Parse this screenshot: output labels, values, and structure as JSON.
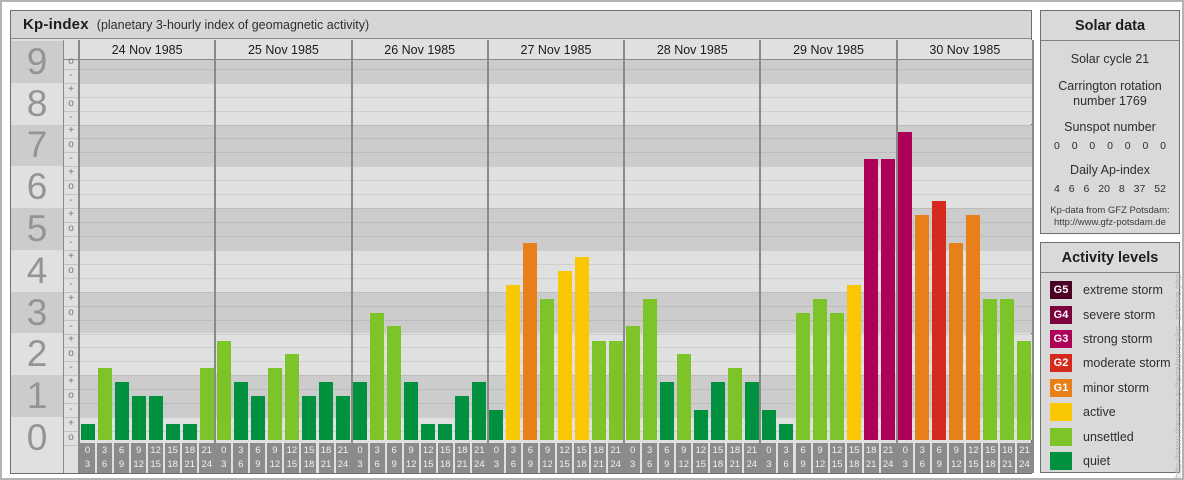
{
  "title": {
    "main": "Kp-index",
    "subtitle": "(planetary 3-hourly index of geomagnetic activity)"
  },
  "chart_data": {
    "type": "bar",
    "title": "Kp-index",
    "subtitle": "(planetary 3-hourly index of geomagnetic activity)",
    "y_axis": {
      "unit_labels": [
        9,
        8,
        7,
        6,
        5,
        4,
        3,
        2,
        1,
        0
      ],
      "sub_level_glyphs_top_to_bottom": [
        "+",
        "o",
        "-"
      ],
      "range": [
        0,
        9
      ]
    },
    "x_axis": {
      "interval_labels": [
        [
          "0",
          "3"
        ],
        [
          "3",
          "6"
        ],
        [
          "6",
          "9"
        ],
        [
          "9",
          "12"
        ],
        [
          "12",
          "15"
        ],
        [
          "15",
          "18"
        ],
        [
          "18",
          "21"
        ],
        [
          "21",
          "24"
        ]
      ]
    },
    "days": [
      {
        "date": "24 Nov 1985",
        "kp": [
          "0+",
          "2-",
          "1+",
          "1o",
          "1o",
          "0+",
          "0+",
          "2-"
        ],
        "values": [
          0.33,
          1.67,
          1.33,
          1.0,
          1.0,
          0.33,
          0.33,
          1.67
        ]
      },
      {
        "date": "25 Nov 1985",
        "kp": [
          "2+",
          "1+",
          "1o",
          "2-",
          "2o",
          "1o",
          "1+",
          "1o"
        ],
        "values": [
          2.33,
          1.33,
          1.0,
          1.67,
          2.0,
          1.0,
          1.33,
          1.0
        ]
      },
      {
        "date": "26 Nov 1985",
        "kp": [
          "1+",
          "3o",
          "3-",
          "1+",
          "0+",
          "0+",
          "1o",
          "1+"
        ],
        "values": [
          1.33,
          3.0,
          2.67,
          1.33,
          0.33,
          0.33,
          1.0,
          1.33
        ]
      },
      {
        "date": "27 Nov 1985",
        "kp": [
          "1-",
          "4-",
          "5-",
          "3+",
          "4o",
          "4+",
          "2+",
          "2+"
        ],
        "values": [
          0.67,
          3.67,
          4.67,
          3.33,
          4.0,
          4.33,
          2.33,
          2.33
        ]
      },
      {
        "date": "28 Nov 1985",
        "kp": [
          "3-",
          "3+",
          "1+",
          "2o",
          "1-",
          "1+",
          "2-",
          "1+"
        ],
        "values": [
          2.67,
          3.33,
          1.33,
          2.0,
          0.67,
          1.33,
          1.67,
          1.33
        ]
      },
      {
        "date": "29 Nov 1985",
        "kp": [
          "1-",
          "0+",
          "3o",
          "3+",
          "3o",
          "4-",
          "7-",
          "7-"
        ],
        "values": [
          0.67,
          0.33,
          3.0,
          3.33,
          3.0,
          3.67,
          6.67,
          6.67
        ]
      },
      {
        "date": "30 Nov 1985",
        "kp": [
          "7+",
          "5+",
          "6-",
          "5-",
          "5+",
          "3+",
          "3+",
          "2+"
        ],
        "values": [
          7.33,
          5.33,
          5.67,
          4.67,
          5.33,
          3.33,
          3.33,
          2.33
        ]
      }
    ]
  },
  "solar_panel": {
    "title": "Solar data",
    "solar_cycle": "Solar cycle 21",
    "carrington": "Carrington rotation number 1769",
    "sunspot_label": "Sunspot number",
    "sunspot_values": [
      0,
      0,
      0,
      0,
      0,
      0,
      0
    ],
    "ap_label": "Daily Ap-index",
    "ap_values": [
      4,
      6,
      6,
      20,
      8,
      37,
      52
    ],
    "credit_line1": "Kp-data from GFZ Potsdam:",
    "credit_line2": "http://www.gfz-potsdam.de"
  },
  "legend": {
    "title": "Activity levels",
    "items": [
      {
        "code": "G5",
        "label": "extreme storm",
        "color_key": "g5"
      },
      {
        "code": "G4",
        "label": "severe storm",
        "color_key": "g4"
      },
      {
        "code": "G3",
        "label": "strong storm",
        "color_key": "g3"
      },
      {
        "code": "G2",
        "label": "moderate storm",
        "color_key": "g2"
      },
      {
        "code": "G1",
        "label": "minor storm",
        "color_key": "g1"
      },
      {
        "code": "",
        "label": "active",
        "color_key": "active"
      },
      {
        "code": "",
        "label": "unsettled",
        "color_key": "unsettled"
      },
      {
        "code": "",
        "label": "quiet",
        "color_key": "quiet"
      }
    ]
  },
  "watermark": "http://www.theusner.eu/terra/aurora/kp_archive.php",
  "colors": {
    "quiet": "#00913f",
    "unsettled": "#7cc428",
    "active": "#f9c802",
    "g1": "#e8801a",
    "g2": "#d52b1e",
    "g3": "#ad0059",
    "g4": "#7d003f",
    "g5": "#4d0027",
    "stripe_dark": "#cccccc",
    "stripe_light": "#e0e0e0",
    "badge_gray": "#8b8b8b",
    "divider_gray": "#8a8a8a"
  }
}
